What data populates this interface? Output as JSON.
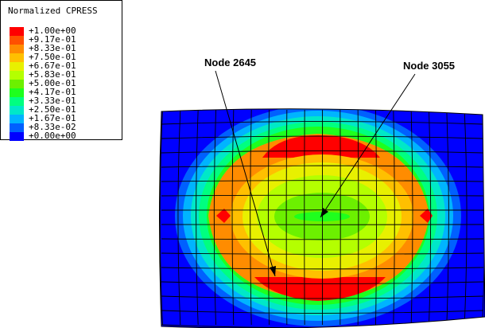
{
  "legend": {
    "title": "Normalized CPRESS",
    "entries": [
      {
        "label": "+1.00e+00",
        "color": "#ff0000"
      },
      {
        "label": "+9.17e-01",
        "color": "#ff5000"
      },
      {
        "label": "+8.33e-01",
        "color": "#ff8c00"
      },
      {
        "label": "+7.50e-01",
        "color": "#ffc000"
      },
      {
        "label": "+6.67e-01",
        "color": "#e8f000"
      },
      {
        "label": "+5.83e-01",
        "color": "#b4ff00"
      },
      {
        "label": "+5.00e-01",
        "color": "#6cf000"
      },
      {
        "label": "+4.17e-01",
        "color": "#1eff1e"
      },
      {
        "label": "+3.33e-01",
        "color": "#00ff80"
      },
      {
        "label": "+2.50e-01",
        "color": "#00e8c8"
      },
      {
        "label": "+1.67e-01",
        "color": "#00b4ff"
      },
      {
        "label": "+8.33e-02",
        "color": "#0060ff"
      },
      {
        "label": "+0.00e+00",
        "color": "#0000ff"
      }
    ]
  },
  "annotations": {
    "node_a": "Node 2645",
    "node_b": "Node 3055"
  }
}
